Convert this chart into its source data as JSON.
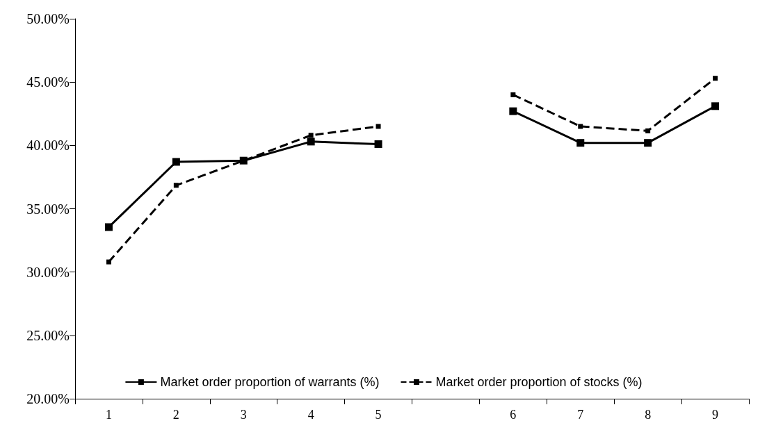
{
  "chart_data": {
    "type": "line",
    "categories": [
      "1",
      "2",
      "3",
      "4",
      "5",
      null,
      "6",
      "7",
      "8",
      "9"
    ],
    "series": [
      {
        "name": "Market order proportion of warrants (%)",
        "color": "#000000",
        "line_style": "solid",
        "values": [
          33.55,
          38.7,
          38.8,
          40.3,
          40.1,
          null,
          42.7,
          40.2,
          40.2,
          43.1
        ]
      },
      {
        "name": "Market order proportion of stocks (%)",
        "color": "#000000",
        "line_style": "dashed",
        "values": [
          30.8,
          36.85,
          38.8,
          40.8,
          41.5,
          null,
          44.0,
          41.5,
          41.15,
          45.3
        ]
      }
    ],
    "ylim": [
      20,
      50
    ],
    "yticks": [
      {
        "value": 20,
        "label": "20.00%"
      },
      {
        "value": 25,
        "label": "25.00%"
      },
      {
        "value": 30,
        "label": "30.00%"
      },
      {
        "value": 35,
        "label": "35.00%"
      },
      {
        "value": 40,
        "label": "40.00%"
      },
      {
        "value": 45,
        "label": "45.00%"
      },
      {
        "value": 50,
        "label": "50.00%"
      }
    ],
    "grid": false,
    "legend": "bottom",
    "marker": "square"
  }
}
